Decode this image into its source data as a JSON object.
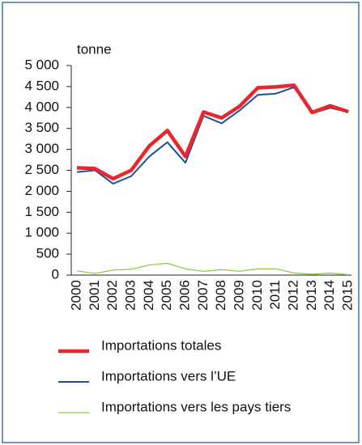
{
  "chart_data": {
    "type": "line",
    "y_unit_label": "tonne",
    "x": [
      "2000",
      "2001",
      "2002",
      "2003",
      "2004",
      "2005",
      "2006",
      "2007",
      "2008",
      "2009",
      "2010",
      "2011",
      "2012",
      "2013",
      "2014",
      "2015"
    ],
    "series": [
      {
        "name": "Importations totales",
        "color": "#e8262c",
        "width": 4.5,
        "values": [
          2560,
          2540,
          2300,
          2500,
          3080,
          3450,
          2830,
          3890,
          3750,
          4030,
          4470,
          4490,
          4530,
          3880,
          4040,
          3900
        ]
      },
      {
        "name": "Importations vers l’UE",
        "color": "#1f4e9c",
        "width": 2,
        "values": [
          2460,
          2500,
          2180,
          2360,
          2830,
          3170,
          2680,
          3800,
          3620,
          3930,
          4300,
          4330,
          4480,
          3860,
          3990,
          3890
        ]
      },
      {
        "name": "Importations vers les pays tiers",
        "color": "#8cc63f",
        "width": 1.2,
        "values": [
          100,
          40,
          120,
          140,
          240,
          280,
          150,
          90,
          130,
          90,
          150,
          150,
          50,
          20,
          50,
          10
        ]
      }
    ],
    "ylim": [
      0,
      5000
    ],
    "yticks": [
      0,
      500,
      {
        "value": 1000,
        "label": "1 000"
      },
      {
        "value": 1500,
        "label": "1 500"
      },
      {
        "value": 2000,
        "label": "2 000"
      },
      {
        "value": 2500,
        "label": "2 500"
      },
      {
        "value": 3000,
        "label": "3 000"
      },
      {
        "value": 3500,
        "label": "3 500"
      },
      {
        "value": 4000,
        "label": "4 000"
      },
      {
        "value": 4500,
        "label": "4 500"
      },
      {
        "value": 5000,
        "label": "5 000"
      }
    ],
    "legend": "bottom"
  }
}
